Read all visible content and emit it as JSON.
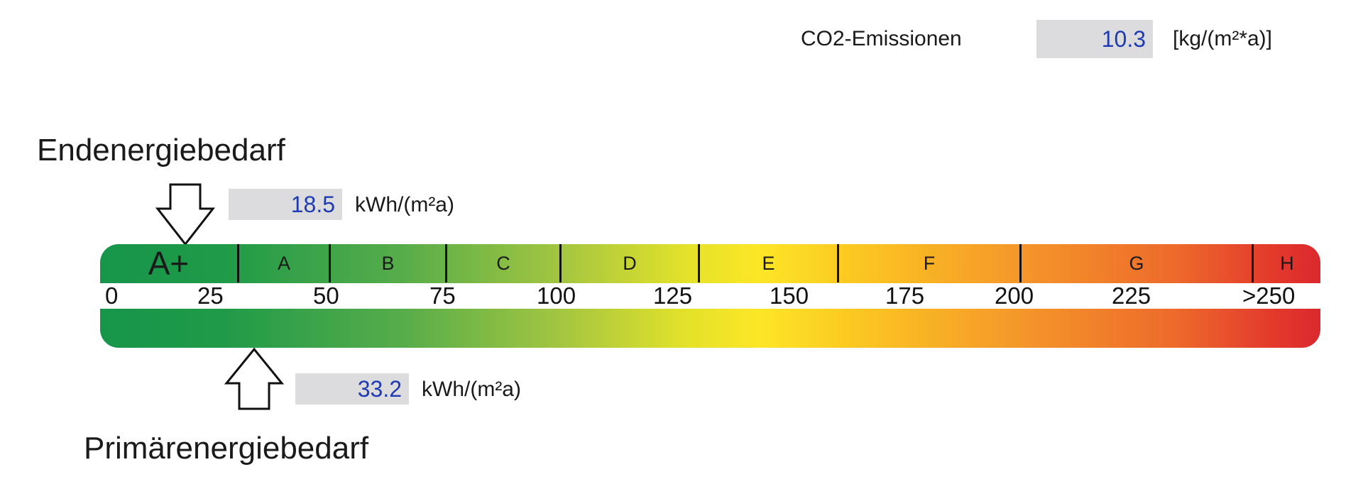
{
  "co2": {
    "label": "CO2-Emissionen",
    "value": "10.3",
    "unit": "[kg/(m²*a)]"
  },
  "end_energy": {
    "title": "Endenergiebedarf",
    "value": "18.5",
    "unit": "kWh/(m²a)"
  },
  "primary_energy": {
    "title": "Primärenergiebedarf",
    "value": "33.2",
    "unit": "kWh/(m²a)"
  },
  "classes": [
    "A+",
    "A",
    "B",
    "C",
    "D",
    "E",
    "F",
    "G",
    "H"
  ],
  "ticks": [
    "0",
    "25",
    "50",
    "75",
    "100",
    "125",
    "150",
    "175",
    "200",
    "225",
    ">250"
  ],
  "colors": {
    "value_text": "#1f3bb3",
    "value_box": "#dcdcde",
    "scale_start": "#17954a",
    "scale_mid": "#fde626",
    "scale_end": "#db282d"
  }
}
